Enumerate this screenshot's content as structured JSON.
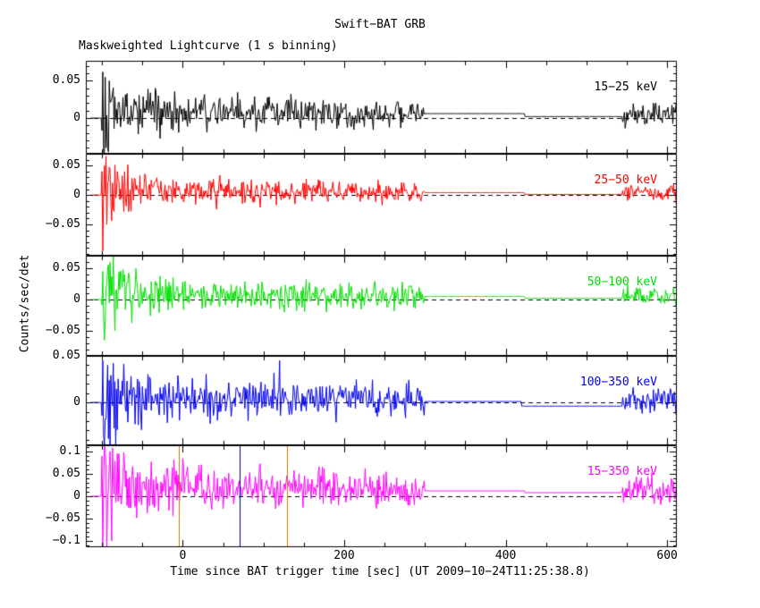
{
  "chart_data": {
    "type": "line",
    "title": "Swift−BAT GRB",
    "subtitle": "Maskweighted Lightcurve (1 s binning)",
    "xlabel": "Time since BAT trigger time [sec] (UT 2009−10−24T11:25:38.8)",
    "ylabel": "Counts/sec/det",
    "background": "#ffffff",
    "axis_color": "#000000",
    "zero_line_style": "dashed",
    "legend_position": "inside-top-right-per-panel",
    "grid": false,
    "bin_sec": 1,
    "noise_seed": 1337,
    "xlim": [
      -120,
      612
    ],
    "x_minor_step": 50,
    "xticks": [
      {
        "v": 0,
        "label": "0"
      },
      {
        "v": 200,
        "label": "200"
      },
      {
        "v": 400,
        "label": "400"
      },
      {
        "v": 600,
        "label": "600"
      }
    ],
    "panels": [
      {
        "label": "15−25 keV",
        "color": "#000000",
        "ylim": [
          -0.048,
          0.077
        ],
        "yticks": [
          {
            "v": 0.05,
            "label": "0.05"
          },
          {
            "v": 0,
            "label": "0"
          }
        ],
        "y_minor_step": 0.01,
        "segments": [
          {
            "t0": -118,
            "t1": -100,
            "m0": 0,
            "m1": 0,
            "a0": 0,
            "a1": 0
          },
          {
            "t0": -100,
            "t1": -85,
            "m0": 0.005,
            "m1": 0.012,
            "a0": 0.035,
            "a1": 0.02
          },
          {
            "t0": -85,
            "t1": 0,
            "m0": 0.012,
            "m1": 0.009,
            "a0": 0.02,
            "a1": 0.012
          },
          {
            "t0": 0,
            "t1": 150,
            "m0": 0.009,
            "m1": 0.007,
            "a0": 0.012,
            "a1": 0.01
          },
          {
            "t0": 150,
            "t1": 300,
            "m0": 0.007,
            "m1": 0.005,
            "a0": 0.01,
            "a1": 0.008
          },
          {
            "t0": 300,
            "t1": 424,
            "m0": 0.006,
            "m1": 0.006,
            "a0": 0,
            "a1": 0
          },
          {
            "t0": 424,
            "t1": 545,
            "m0": 0.002,
            "m1": 0.002,
            "a0": 0,
            "a1": 0
          },
          {
            "t0": 545,
            "t1": 612,
            "m0": 0.005,
            "m1": 0.005,
            "a0": 0.008,
            "a1": 0.008
          }
        ],
        "spikes": [
          {
            "t": -99,
            "v": 0.062
          },
          {
            "t": -98,
            "v": -0.046
          },
          {
            "t": -96,
            "v": 0.055
          },
          {
            "t": -93,
            "v": -0.04
          },
          {
            "t": -91,
            "v": 0.05
          }
        ]
      },
      {
        "label": "25−50 keV",
        "color": "#ff0000",
        "ylim": [
          -0.103,
          0.07
        ],
        "yticks": [
          {
            "v": 0.05,
            "label": "0.05"
          },
          {
            "v": 0,
            "label": "0"
          },
          {
            "v": -0.05,
            "label": "−0.05"
          }
        ],
        "y_minor_step": 0.01,
        "segments": [
          {
            "t0": -118,
            "t1": -100,
            "m0": 0,
            "m1": 0,
            "a0": 0,
            "a1": 0
          },
          {
            "t0": -100,
            "t1": -85,
            "m0": 0.005,
            "m1": 0.012,
            "a0": 0.04,
            "a1": 0.022
          },
          {
            "t0": -85,
            "t1": 0,
            "m0": 0.012,
            "m1": 0.008,
            "a0": 0.022,
            "a1": 0.012
          },
          {
            "t0": 0,
            "t1": 300,
            "m0": 0.008,
            "m1": 0.004,
            "a0": 0.012,
            "a1": 0.008
          },
          {
            "t0": 300,
            "t1": 424,
            "m0": 0.004,
            "m1": 0.004,
            "a0": 0,
            "a1": 0
          },
          {
            "t0": 424,
            "t1": 545,
            "m0": 0.001,
            "m1": 0.001,
            "a0": 0,
            "a1": 0
          },
          {
            "t0": 545,
            "t1": 612,
            "m0": 0.004,
            "m1": 0.004,
            "a0": 0.008,
            "a1": 0.008
          }
        ],
        "spikes": [
          {
            "t": -100,
            "v": 0.04
          },
          {
            "t": -99,
            "v": -0.095
          },
          {
            "t": -97,
            "v": 0.05
          },
          {
            "t": -94,
            "v": -0.05
          },
          {
            "t": -90,
            "v": 0.045
          }
        ]
      },
      {
        "label": "50−100 keV",
        "color": "#00e000",
        "ylim": [
          -0.09,
          0.07
        ],
        "yticks": [
          {
            "v": 0.05,
            "label": "0.05"
          },
          {
            "v": 0,
            "label": "0"
          },
          {
            "v": -0.05,
            "label": "−0.05"
          }
        ],
        "y_minor_step": 0.01,
        "segments": [
          {
            "t0": -118,
            "t1": -100,
            "m0": 0,
            "m1": 0,
            "a0": 0,
            "a1": 0
          },
          {
            "t0": -100,
            "t1": -85,
            "m0": 0.006,
            "m1": 0.012,
            "a0": 0.035,
            "a1": 0.022
          },
          {
            "t0": -85,
            "t1": 0,
            "m0": 0.012,
            "m1": 0.008,
            "a0": 0.022,
            "a1": 0.013
          },
          {
            "t0": 0,
            "t1": 300,
            "m0": 0.008,
            "m1": 0.004,
            "a0": 0.013,
            "a1": 0.009
          },
          {
            "t0": 300,
            "t1": 424,
            "m0": 0.005,
            "m1": 0.005,
            "a0": 0,
            "a1": 0
          },
          {
            "t0": 424,
            "t1": 545,
            "m0": 0.002,
            "m1": 0.002,
            "a0": 0,
            "a1": 0
          },
          {
            "t0": 545,
            "t1": 612,
            "m0": 0.004,
            "m1": 0.004,
            "a0": 0.009,
            "a1": 0.009
          }
        ],
        "spikes": [
          {
            "t": -99,
            "v": 0.045
          },
          {
            "t": -97,
            "v": -0.065
          },
          {
            "t": -93,
            "v": 0.05
          },
          {
            "t": -86,
            "v": 0.074
          },
          {
            "t": -84,
            "v": -0.05
          }
        ]
      },
      {
        "label": "100−350 keV",
        "color": "#0000ee",
        "ylim": [
          -0.046,
          0.05
        ],
        "yticks": [
          {
            "v": 0.05,
            "label": "0.05"
          },
          {
            "v": 0,
            "label": "0"
          }
        ],
        "y_minor_step": 0.01,
        "segments": [
          {
            "t0": -118,
            "t1": -100,
            "m0": 0,
            "m1": 0,
            "a0": 0,
            "a1": 0
          },
          {
            "t0": -100,
            "t1": -80,
            "m0": 0.002,
            "m1": 0.006,
            "a0": 0.03,
            "a1": 0.018
          },
          {
            "t0": -80,
            "t1": 0,
            "m0": 0.006,
            "m1": 0.005,
            "a0": 0.018,
            "a1": 0.012
          },
          {
            "t0": 0,
            "t1": 300,
            "m0": 0.005,
            "m1": 0.002,
            "a0": 0.012,
            "a1": 0.008
          },
          {
            "t0": 300,
            "t1": 420,
            "m0": 0.001,
            "m1": 0.001,
            "a0": 0,
            "a1": 0
          },
          {
            "t0": 420,
            "t1": 545,
            "m0": -0.004,
            "m1": -0.004,
            "a0": 0,
            "a1": 0
          },
          {
            "t0": 545,
            "t1": 612,
            "m0": 0.002,
            "m1": 0.002,
            "a0": 0.007,
            "a1": 0.007
          }
        ],
        "spikes": [
          {
            "t": -99,
            "v": 0.045
          },
          {
            "t": -97,
            "v": -0.09
          },
          {
            "t": -93,
            "v": 0.04
          },
          {
            "t": -90,
            "v": -0.08
          },
          {
            "t": -86,
            "v": 0.042
          },
          {
            "t": -83,
            "v": -0.05
          },
          {
            "t": 120,
            "v": 0.045
          }
        ]
      },
      {
        "label": "15−350 keV",
        "color": "#ff00ff",
        "ylim": [
          -0.114,
          0.114
        ],
        "yticks": [
          {
            "v": 0.1,
            "label": "0.1"
          },
          {
            "v": 0.05,
            "label": "0.05"
          },
          {
            "v": 0,
            "label": "0"
          },
          {
            "v": -0.05,
            "label": "−0.05"
          },
          {
            "v": -0.1,
            "label": "−0.1"
          }
        ],
        "y_minor_step": 0.01,
        "segments": [
          {
            "t0": -118,
            "t1": -100,
            "m0": 0,
            "m1": 0,
            "a0": 0,
            "a1": 0
          },
          {
            "t0": -100,
            "t1": -85,
            "m0": 0.01,
            "m1": 0.025,
            "a0": 0.055,
            "a1": 0.035
          },
          {
            "t0": -85,
            "t1": 0,
            "m0": 0.025,
            "m1": 0.02,
            "a0": 0.035,
            "a1": 0.025
          },
          {
            "t0": 0,
            "t1": 150,
            "m0": 0.02,
            "m1": 0.018,
            "a0": 0.025,
            "a1": 0.02
          },
          {
            "t0": 150,
            "t1": 300,
            "m0": 0.018,
            "m1": 0.015,
            "a0": 0.02,
            "a1": 0.018
          },
          {
            "t0": 300,
            "t1": 424,
            "m0": 0.012,
            "m1": 0.012,
            "a0": 0,
            "a1": 0
          },
          {
            "t0": 424,
            "t1": 545,
            "m0": 0.008,
            "m1": 0.008,
            "a0": 0,
            "a1": 0
          },
          {
            "t0": 545,
            "t1": 612,
            "m0": 0.012,
            "m1": 0.012,
            "a0": 0.015,
            "a1": 0.015
          }
        ],
        "spikes": [
          {
            "t": -100,
            "v": 0.09
          },
          {
            "t": -99,
            "v": -0.125
          },
          {
            "t": -96,
            "v": 0.105
          },
          {
            "t": -94,
            "v": -0.115
          },
          {
            "t": -90,
            "v": 0.1
          },
          {
            "t": -88,
            "v": -0.1
          }
        ]
      }
    ],
    "event_lines": [
      {
        "panel": 4,
        "t": -5,
        "color": "#cc7a00"
      },
      {
        "panel": 4,
        "t": 70,
        "color": "#00008b"
      },
      {
        "panel": 4,
        "t": 129,
        "color": "#cc7a00"
      }
    ]
  }
}
